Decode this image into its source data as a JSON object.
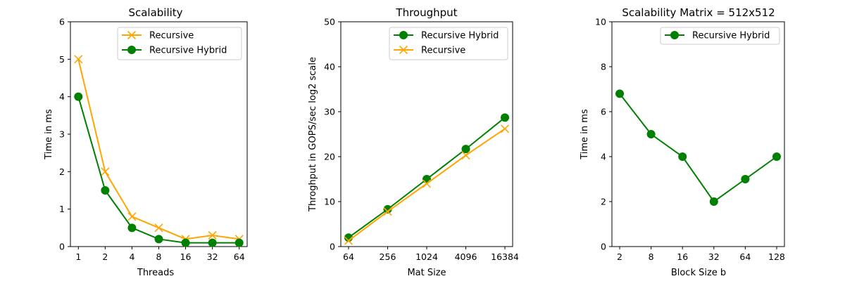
{
  "chart_data": [
    {
      "type": "line",
      "title": "Scalability",
      "xlabel": "Threads",
      "ylabel": "Time in ms",
      "categories": [
        "1",
        "2",
        "4",
        "8",
        "16",
        "32",
        "64"
      ],
      "ylim": [
        0,
        6
      ],
      "yticks": [
        0,
        1,
        2,
        3,
        4,
        5,
        6
      ],
      "legend_position": "top-right",
      "series": [
        {
          "name": "Recursive",
          "values": [
            5,
            2,
            0.8,
            0.5,
            0.2,
            0.3,
            0.2
          ],
          "color": "#ffa500",
          "marker": "x"
        },
        {
          "name": "Recursive Hybrid",
          "values": [
            4,
            1.5,
            0.5,
            0.2,
            0.1,
            0.1,
            0.1
          ],
          "color": "#008000",
          "marker": "o"
        }
      ]
    },
    {
      "type": "line",
      "title": "Throughput",
      "xlabel": "Mat Size",
      "ylabel": "Throghput in GOPS/sec log2 scale",
      "x": [
        64,
        256,
        1024,
        4096,
        16384
      ],
      "x_scale": "log2",
      "xticks": [
        "64",
        "256",
        "1024",
        "4096",
        "16384"
      ],
      "ylim": [
        0,
        50
      ],
      "yticks": [
        0,
        10,
        20,
        30,
        40,
        50
      ],
      "legend_position": "top-right",
      "series": [
        {
          "name": "Recursive Hybrid",
          "values": [
            2,
            8.3,
            15,
            21.7,
            28.7
          ],
          "color": "#008000",
          "marker": "o"
        },
        {
          "name": "Recursive",
          "values": [
            1.3,
            7.8,
            14,
            20.3,
            26.2
          ],
          "color": "#ffa500",
          "marker": "x"
        }
      ]
    },
    {
      "type": "line",
      "title": "Scalability Matrix = 512x512",
      "xlabel": "Block Size b",
      "ylabel": "Time in ms",
      "categories": [
        "2",
        "8",
        "16",
        "32",
        "64",
        "128"
      ],
      "ylim": [
        0,
        10
      ],
      "yticks": [
        0,
        2,
        4,
        6,
        8,
        10
      ],
      "legend_position": "top-right",
      "series": [
        {
          "name": "Recursive Hybrid",
          "values": [
            6.8,
            5,
            4,
            2,
            3,
            4
          ],
          "color": "#008000",
          "marker": "o"
        }
      ]
    }
  ]
}
